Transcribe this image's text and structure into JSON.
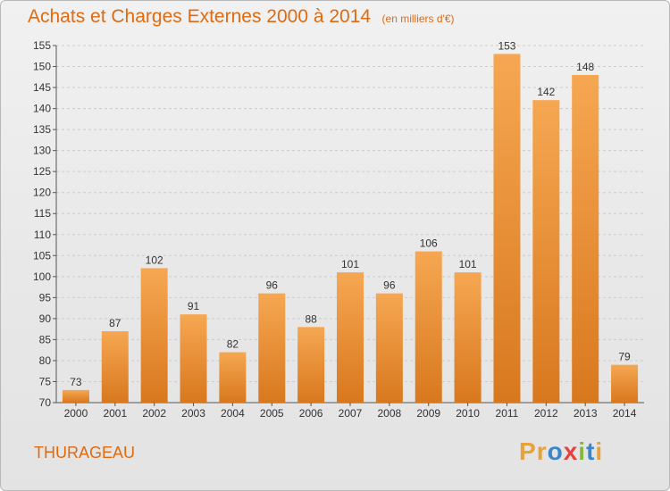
{
  "title": "Achats et Charges Externes 2000 à 2014",
  "unit": "(en milliers d'€)",
  "place": "THURAGEAU",
  "logo": {
    "letters": [
      "P",
      "r",
      "o",
      "x",
      "i",
      "t",
      "i"
    ],
    "colors": [
      "#e8a23a",
      "#e8a23a",
      "#3a86c8",
      "#e84040",
      "#88b83a",
      "#3a86c8",
      "#e8a23a"
    ]
  },
  "colors": {
    "title": "#e06a10",
    "bar_top": "#f6a752",
    "bar_bottom": "#d8781e",
    "grid": "#cccccc"
  },
  "chart_data": {
    "type": "bar",
    "title": "Achats et Charges Externes 2000 à 2014",
    "subtitle": "(en milliers d'€)",
    "xlabel": "",
    "ylabel": "",
    "categories": [
      "2000",
      "2001",
      "2002",
      "2003",
      "2004",
      "2005",
      "2006",
      "2007",
      "2008",
      "2009",
      "2010",
      "2011",
      "2012",
      "2013",
      "2014"
    ],
    "values": [
      73,
      87,
      102,
      91,
      82,
      96,
      88,
      101,
      96,
      106,
      101,
      153,
      142,
      148,
      79
    ],
    "ylim": [
      70,
      155
    ],
    "yticks": [
      70,
      75,
      80,
      85,
      90,
      95,
      100,
      105,
      110,
      115,
      120,
      125,
      130,
      135,
      140,
      145,
      150,
      155
    ],
    "grid": true,
    "data_labels": true
  }
}
